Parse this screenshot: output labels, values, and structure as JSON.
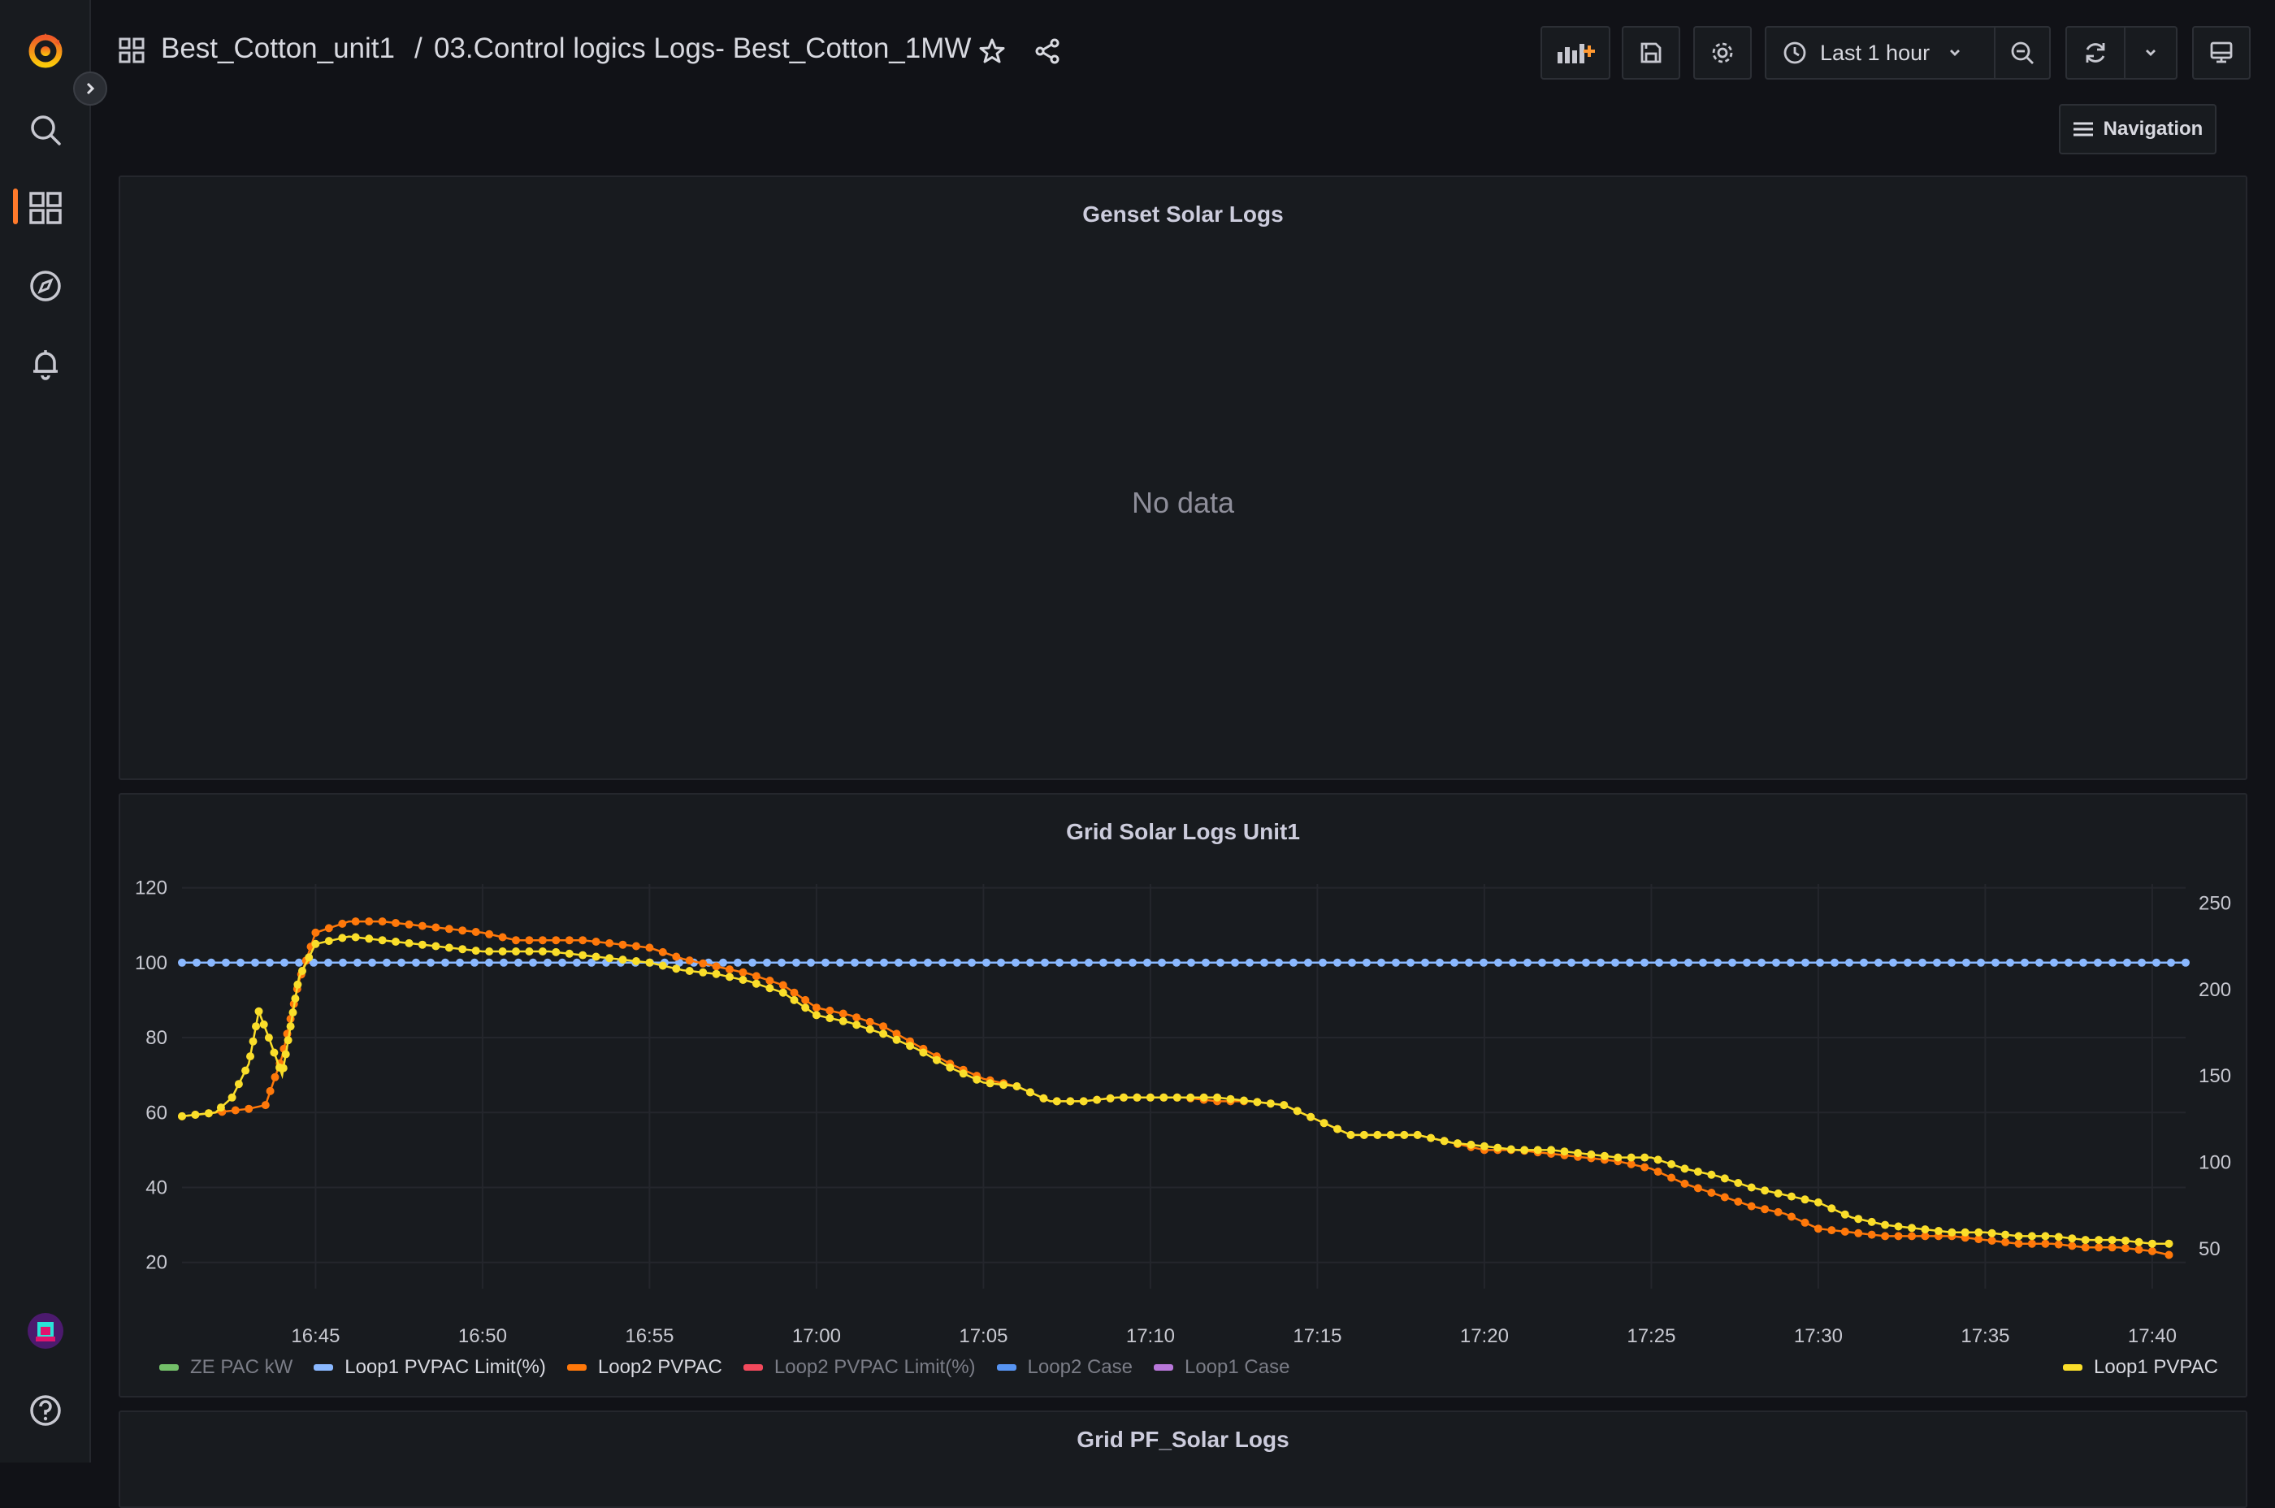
{
  "breadcrumb": {
    "folder": "Best_Cotton_unit1",
    "separator": "/",
    "dashboard": "03.Control logics Logs- Best_Cotton_1MW"
  },
  "toolbar": {
    "time_range": "Last 1 hour",
    "navigation_label": "Navigation"
  },
  "panels": {
    "genset": {
      "title": "Genset Solar Logs",
      "empty_text": "No data"
    },
    "grid": {
      "title": "Grid Solar Logs Unit1"
    },
    "grid_pf": {
      "title": "Grid PF_Solar Logs"
    }
  },
  "chart_data": {
    "type": "line",
    "title": "Grid Solar Logs Unit1",
    "x_ticks": [
      "16:45",
      "16:50",
      "16:55",
      "17:00",
      "17:05",
      "17:10",
      "17:15",
      "17:20",
      "17:25",
      "17:30",
      "17:35",
      "17:40"
    ],
    "x_range": [
      "16:41",
      "17:41"
    ],
    "y_left_ticks": [
      "120",
      "100",
      "80",
      "60",
      "40",
      "20"
    ],
    "y_left_range": [
      13,
      121
    ],
    "y_right_ticks": [
      "250",
      "200",
      "150",
      "100",
      "50"
    ],
    "y_right_range": [
      27,
      261
    ],
    "legend_position": "bottom",
    "grid": true,
    "legend": [
      {
        "name": "ZE PAC kW",
        "color": "#73bf69",
        "active": false
      },
      {
        "name": "Loop1 PVPAC Limit(%)",
        "color": "#8ab8ff",
        "active": true
      },
      {
        "name": "Loop2 PVPAC",
        "color": "#ff780a",
        "active": true
      },
      {
        "name": "Loop2 PVPAC Limit(%)",
        "color": "#f2495c",
        "active": false
      },
      {
        "name": "Loop2 Case",
        "color": "#5794f2",
        "active": false
      },
      {
        "name": "Loop1 Case",
        "color": "#b877d9",
        "active": false
      }
    ],
    "legend_right": {
      "name": "Loop1 PVPAC",
      "color": "#fade2a",
      "active": true
    },
    "series": [
      {
        "name": "Loop1 PVPAC Limit(%)",
        "color": "#8ab8ff",
        "x": [
          "16:41",
          "17:41"
        ],
        "y": [
          100,
          100
        ]
      },
      {
        "name": "Loop2 PVPAC",
        "color": "#ff780a",
        "x": [
          "16:41",
          "16:42",
          "16:43",
          "16:43.5",
          "16:44",
          "16:44.5",
          "16:45",
          "16:46",
          "16:47",
          "16:48",
          "16:49",
          "16:50",
          "16:51",
          "16:52",
          "16:53",
          "16:54",
          "16:55",
          "16:56",
          "16:57",
          "16:58",
          "16:59",
          "17:00",
          "17:01",
          "17:02",
          "17:03",
          "17:04",
          "17:05",
          "17:06",
          "17:07",
          "17:08",
          "17:09",
          "17:10",
          "17:11",
          "17:12",
          "17:13",
          "17:14",
          "17:15",
          "17:16",
          "17:17",
          "17:18",
          "17:19",
          "17:20",
          "17:21",
          "17:22",
          "17:23",
          "17:24",
          "17:25",
          "17:26",
          "17:27",
          "17:28",
          "17:29",
          "17:30",
          "17:31",
          "17:32",
          "17:33",
          "17:34",
          "17:35",
          "17:36",
          "17:37",
          "17:38",
          "17:39",
          "17:40",
          "17:40.5"
        ],
        "y": [
          59,
          60,
          61,
          62,
          75,
          95,
          108,
          111,
          111,
          110,
          109,
          108,
          106,
          106,
          106,
          105,
          104,
          101,
          99,
          97,
          94,
          88,
          86,
          83,
          78,
          73,
          69,
          67,
          63,
          63,
          64,
          64,
          64,
          63,
          63,
          62,
          58,
          54,
          54,
          54,
          52,
          50,
          50,
          49,
          48,
          47,
          45,
          41,
          38,
          35,
          33,
          29,
          28,
          27,
          27,
          27,
          26,
          25,
          25,
          24,
          24,
          23,
          22
        ]
      },
      {
        "name": "Loop1 PVPAC",
        "color": "#fade2a",
        "x": [
          "16:41",
          "16:42",
          "16:42.5",
          "16:43",
          "16:43.3",
          "16:43.6",
          "16:44",
          "16:44.5",
          "16:45",
          "16:46",
          "16:47",
          "16:48",
          "16:49",
          "16:50",
          "16:51",
          "16:52",
          "16:53",
          "16:54",
          "16:55",
          "16:56",
          "16:57",
          "16:58",
          "16:59",
          "17:00",
          "17:01",
          "17:02",
          "17:03",
          "17:04",
          "17:05",
          "17:06",
          "17:07",
          "17:08",
          "17:09",
          "17:10",
          "17:11",
          "17:12",
          "17:13",
          "17:14",
          "17:15",
          "17:16",
          "17:17",
          "17:18",
          "17:19",
          "17:20",
          "17:21",
          "17:22",
          "17:23",
          "17:24",
          "17:25",
          "17:26",
          "17:27",
          "17:28",
          "17:29",
          "17:30",
          "17:31",
          "17:32",
          "17:33",
          "17:34",
          "17:35",
          "17:36",
          "17:37",
          "17:38",
          "17:39",
          "17:40",
          "17:40.5"
        ],
        "y": [
          59,
          60,
          64,
          73,
          87,
          80,
          70,
          96,
          105,
          107,
          106,
          105,
          104,
          103,
          103,
          103,
          102,
          101,
          100,
          98,
          97,
          95,
          92,
          86,
          84,
          81,
          77,
          72,
          68,
          67,
          63,
          63,
          64,
          64,
          64,
          64,
          63,
          62,
          58,
          54,
          54,
          54,
          52,
          51,
          50,
          50,
          49,
          48,
          48,
          45,
          43,
          40,
          38,
          36,
          32,
          30,
          29,
          28,
          28,
          27,
          27,
          26,
          26,
          25,
          25
        ]
      }
    ]
  }
}
